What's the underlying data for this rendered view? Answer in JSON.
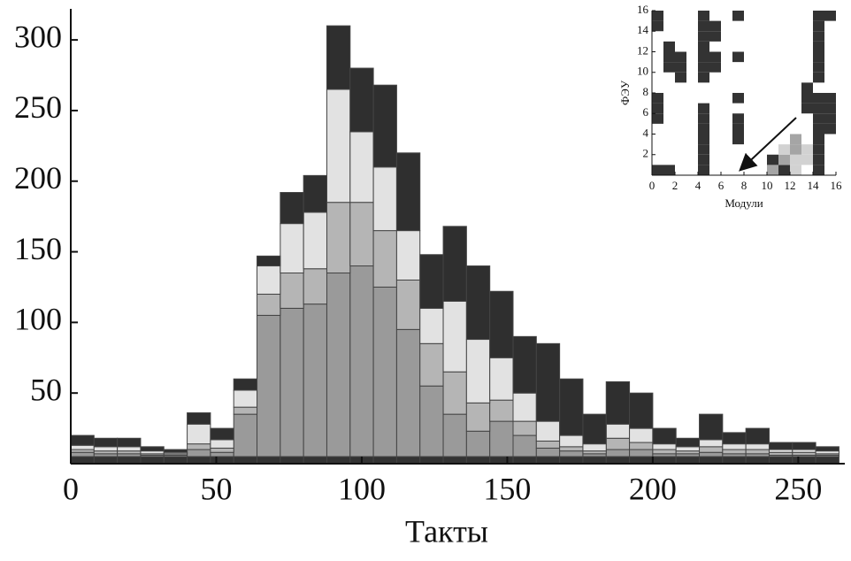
{
  "chart_data": [
    {
      "type": "histogram",
      "xlabel": "Такты",
      "bins": [
        0,
        8,
        16,
        24,
        32,
        40,
        48,
        56,
        64,
        72,
        80,
        88,
        96,
        104,
        112,
        120,
        128,
        136,
        144,
        152,
        160,
        168,
        176,
        184,
        192,
        200,
        208,
        216,
        224,
        232,
        240,
        248,
        256,
        264
      ],
      "series": [
        {
          "color": "#333333",
          "values": [
            5,
            5,
            5,
            5,
            5,
            5,
            5,
            5,
            5,
            5,
            5,
            5,
            5,
            5,
            5,
            5,
            5,
            5,
            5,
            5,
            5,
            5,
            5,
            5,
            5,
            5,
            5,
            5,
            5,
            5,
            5,
            5,
            5
          ]
        },
        {
          "color": "#9a9a9a",
          "values": [
            3,
            2,
            2,
            1,
            1,
            5,
            3,
            30,
            100,
            105,
            108,
            130,
            135,
            120,
            90,
            50,
            30,
            18,
            25,
            15,
            6,
            4,
            2,
            5,
            5,
            2,
            2,
            3,
            2,
            2,
            1,
            1,
            1
          ]
        },
        {
          "color": "#b5b5b5",
          "values": [
            2,
            2,
            2,
            1,
            1,
            4,
            3,
            5,
            15,
            25,
            25,
            50,
            45,
            40,
            35,
            30,
            30,
            20,
            15,
            10,
            5,
            3,
            2,
            8,
            5,
            3,
            2,
            4,
            3,
            3,
            2,
            2,
            1
          ]
        },
        {
          "color": "#e2e2e2",
          "values": [
            3,
            3,
            3,
            2,
            1,
            14,
            6,
            12,
            20,
            35,
            40,
            80,
            50,
            45,
            35,
            25,
            50,
            45,
            30,
            20,
            14,
            8,
            5,
            10,
            10,
            4,
            3,
            5,
            4,
            4,
            2,
            2,
            2
          ]
        },
        {
          "color": "#2f2f2f",
          "values": [
            7,
            6,
            6,
            3,
            2,
            8,
            8,
            8,
            7,
            22,
            26,
            45,
            45,
            58,
            55,
            38,
            53,
            52,
            47,
            40,
            55,
            40,
            21,
            30,
            25,
            11,
            6,
            18,
            8,
            11,
            5,
            5,
            3
          ]
        }
      ],
      "xlim": [
        0,
        266
      ],
      "ylim": [
        0,
        322
      ],
      "xticks": [
        0,
        50,
        100,
        150,
        200,
        250
      ],
      "yticks": [
        50,
        100,
        150,
        200,
        250,
        300
      ]
    },
    {
      "type": "heatmap",
      "xlabel": "Модули",
      "ylabel": "ФЭУ",
      "xlim": [
        0,
        16
      ],
      "ylim": [
        0,
        16
      ],
      "xticks": [
        0,
        2,
        4,
        6,
        8,
        10,
        12,
        14,
        16
      ],
      "yticks": [
        2,
        4,
        6,
        8,
        10,
        12,
        14,
        16
      ],
      "level_colors": [
        "#d2d2d2",
        "#a5a5a5",
        "#333333"
      ],
      "cells": [
        [
          0,
          0,
          3
        ],
        [
          1,
          0,
          3
        ],
        [
          0,
          5,
          3
        ],
        [
          0,
          6,
          3
        ],
        [
          0,
          7,
          3
        ],
        [
          0,
          14,
          3
        ],
        [
          0,
          15,
          3
        ],
        [
          1,
          10,
          3
        ],
        [
          1,
          11,
          3
        ],
        [
          1,
          12,
          3
        ],
        [
          2,
          9,
          3
        ],
        [
          2,
          10,
          3
        ],
        [
          2,
          11,
          3
        ],
        [
          4,
          0,
          3
        ],
        [
          4,
          1,
          3
        ],
        [
          4,
          2,
          3
        ],
        [
          4,
          3,
          3
        ],
        [
          4,
          4,
          3
        ],
        [
          4,
          5,
          3
        ],
        [
          4,
          6,
          3
        ],
        [
          4,
          9,
          3
        ],
        [
          4,
          10,
          3
        ],
        [
          4,
          11,
          3
        ],
        [
          4,
          12,
          3
        ],
        [
          4,
          13,
          3
        ],
        [
          4,
          14,
          3
        ],
        [
          4,
          15,
          3
        ],
        [
          5,
          10,
          3
        ],
        [
          5,
          11,
          3
        ],
        [
          5,
          13,
          3
        ],
        [
          5,
          14,
          3
        ],
        [
          7,
          15,
          3
        ],
        [
          7,
          11,
          3
        ],
        [
          7,
          7,
          3
        ],
        [
          7,
          3,
          3
        ],
        [
          7,
          4,
          3
        ],
        [
          7,
          5,
          3
        ],
        [
          10,
          0,
          2
        ],
        [
          10,
          1,
          3
        ],
        [
          11,
          0,
          3
        ],
        [
          11,
          1,
          2
        ],
        [
          11,
          2,
          1
        ],
        [
          12,
          0,
          1
        ],
        [
          12,
          1,
          1
        ],
        [
          12,
          2,
          2
        ],
        [
          12,
          3,
          2
        ],
        [
          13,
          1,
          1
        ],
        [
          13,
          2,
          1
        ],
        [
          13,
          6,
          3
        ],
        [
          13,
          7,
          3
        ],
        [
          13,
          8,
          3
        ],
        [
          14,
          0,
          3
        ],
        [
          14,
          1,
          3
        ],
        [
          14,
          2,
          3
        ],
        [
          14,
          3,
          3
        ],
        [
          14,
          4,
          3
        ],
        [
          14,
          5,
          3
        ],
        [
          14,
          6,
          3
        ],
        [
          14,
          7,
          3
        ],
        [
          14,
          9,
          3
        ],
        [
          14,
          10,
          3
        ],
        [
          14,
          11,
          3
        ],
        [
          14,
          12,
          3
        ],
        [
          14,
          13,
          3
        ],
        [
          14,
          14,
          3
        ],
        [
          14,
          15,
          3
        ],
        [
          15,
          4,
          3
        ],
        [
          15,
          5,
          3
        ],
        [
          15,
          6,
          3
        ],
        [
          15,
          7,
          3
        ],
        [
          15,
          15,
          3
        ]
      ]
    }
  ]
}
